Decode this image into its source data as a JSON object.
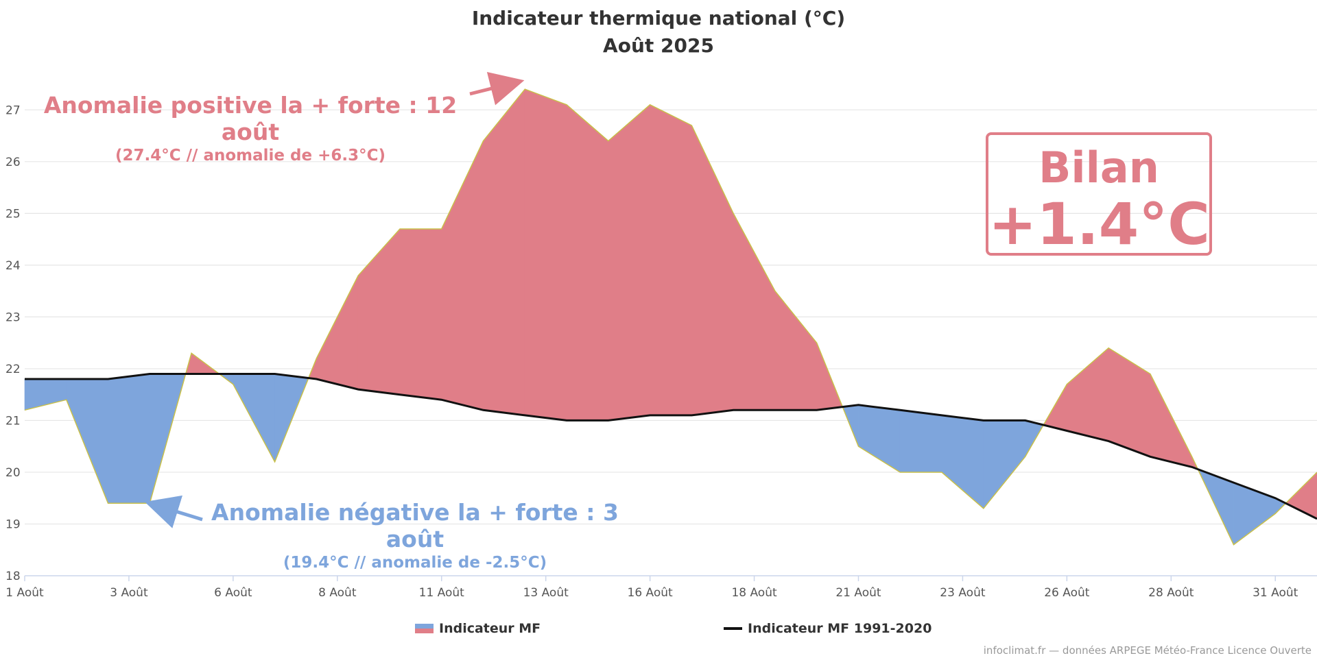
{
  "chart_data": {
    "type": "area",
    "title": "Indicateur thermique national (°C)",
    "subtitle": "Août 2025",
    "x": [
      1,
      2,
      3,
      4,
      5,
      6,
      7,
      8,
      9,
      10,
      11,
      12,
      13,
      14,
      15,
      16,
      17,
      18,
      19,
      20,
      21,
      22,
      23,
      24,
      25,
      26,
      27,
      28,
      29,
      30,
      31,
      32
    ],
    "xticks": [
      {
        "x": 1,
        "label": "1 Août"
      },
      {
        "x": 3.5,
        "label": "3 Août"
      },
      {
        "x": 6,
        "label": "6 Août"
      },
      {
        "x": 8.5,
        "label": "8 Août"
      },
      {
        "x": 11,
        "label": "11 Août"
      },
      {
        "x": 13.5,
        "label": "13 Août"
      },
      {
        "x": 16,
        "label": "16 Août"
      },
      {
        "x": 18.5,
        "label": "18 Août"
      },
      {
        "x": 21,
        "label": "21 Août"
      },
      {
        "x": 23.5,
        "label": "23 Août"
      },
      {
        "x": 26,
        "label": "26 Août"
      },
      {
        "x": 28.5,
        "label": "28 Août"
      },
      {
        "x": 31,
        "label": "31 Août"
      }
    ],
    "ylim": [
      18,
      27.6
    ],
    "yticks": [
      18,
      19,
      20,
      21,
      22,
      23,
      24,
      25,
      26,
      27
    ],
    "grid": true,
    "series": [
      {
        "name": "Indicateur MF",
        "values": [
          21.2,
          21.4,
          19.4,
          19.4,
          22.3,
          21.7,
          20.2,
          22.2,
          23.8,
          24.7,
          24.7,
          26.4,
          27.4,
          27.1,
          26.4,
          27.1,
          26.7,
          25.0,
          23.5,
          22.5,
          20.5,
          20.0,
          20.0,
          19.3,
          20.3,
          21.7,
          22.4,
          21.9,
          20.3,
          18.6,
          19.2,
          20.0
        ]
      },
      {
        "name": "Indicateur MF 1991-2020",
        "values": [
          21.8,
          21.8,
          21.8,
          21.9,
          21.9,
          21.9,
          21.9,
          21.8,
          21.6,
          21.5,
          21.4,
          21.2,
          21.1,
          21.0,
          21.0,
          21.1,
          21.1,
          21.2,
          21.2,
          21.2,
          21.3,
          21.2,
          21.1,
          21.0,
          21.0,
          20.8,
          20.6,
          20.3,
          20.1,
          19.8,
          19.5,
          19.1
        ]
      }
    ],
    "colors": {
      "positive": "#e07e88",
      "negative": "#7ea5dc",
      "normal_line": "#111111",
      "edge": "#c9c04a",
      "grid": "#e6e6e6",
      "axis": "#ccd6eb"
    },
    "annotations": {
      "positive": {
        "text": "Anomalie positive la + forte : 12 août",
        "detail": "(27.4°C // anomalie de +6.3°C)"
      },
      "negative": {
        "text": "Anomalie négative la + forte : 3 août",
        "detail": "(19.4°C // anomalie de -2.5°C)"
      },
      "summary": {
        "label": "Bilan",
        "value": "+1.4°C"
      }
    },
    "legend": [
      "Indicateur MF",
      "Indicateur MF 1991-2020"
    ]
  },
  "credit": "infoclimat.fr — données ARPEGE Météo-France Licence Ouverte"
}
